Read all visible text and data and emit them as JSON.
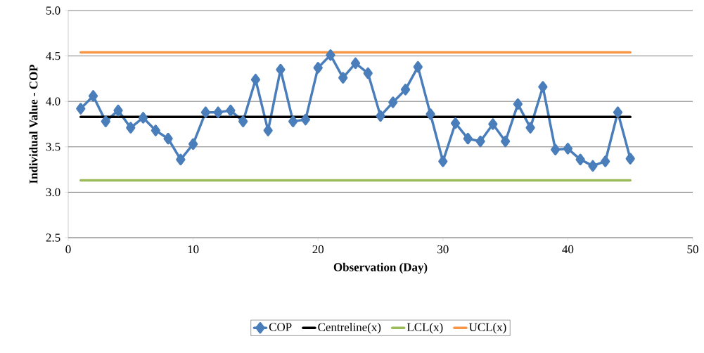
{
  "chart_data": {
    "type": "line",
    "xlabel": "Observation (Day)",
    "ylabel": "Individual Value - COP",
    "xlim": [
      0,
      50
    ],
    "xticks": [
      0,
      10,
      20,
      30,
      40,
      50
    ],
    "ylim": [
      2.5,
      5.0
    ],
    "yticks": [
      {
        "value": 2.5,
        "label": "2.5"
      },
      {
        "value": 3.0,
        "label": "3.0"
      },
      {
        "value": 3.5,
        "label": "3.5"
      },
      {
        "value": 4.0,
        "label": "4.0"
      },
      {
        "value": 4.5,
        "label": "4.5"
      },
      {
        "value": 5.0,
        "label": "5.0"
      }
    ],
    "grid": "y",
    "legend": "bottom",
    "marker": "diamond",
    "line_style": "solid",
    "series": [
      {
        "name": "COP",
        "color": "#4a7ebb",
        "x": [
          1,
          2,
          3,
          4,
          5,
          6,
          7,
          8,
          9,
          10,
          11,
          12,
          13,
          14,
          15,
          16,
          17,
          18,
          19,
          20,
          21,
          22,
          23,
          24,
          25,
          26,
          27,
          28,
          29,
          30,
          31,
          32,
          33,
          34,
          35,
          36,
          37,
          38,
          39,
          40,
          41,
          42,
          43,
          44,
          45
        ],
        "values": [
          3.92,
          4.06,
          3.78,
          3.9,
          3.71,
          3.82,
          3.68,
          3.59,
          3.36,
          3.53,
          3.88,
          3.88,
          3.9,
          3.78,
          4.24,
          3.68,
          4.35,
          3.78,
          3.8,
          4.37,
          4.51,
          4.26,
          4.42,
          4.31,
          3.84,
          3.99,
          4.13,
          4.38,
          3.86,
          3.34,
          3.76,
          3.59,
          3.56,
          3.75,
          3.56,
          3.97,
          3.71,
          4.16,
          3.47,
          3.48,
          3.36,
          3.29,
          3.34,
          3.88,
          3.37
        ]
      },
      {
        "name": "Centreline(x)",
        "color": "#000000",
        "marker": "none",
        "x": [
          1,
          45
        ],
        "values": [
          3.83,
          3.83
        ]
      },
      {
        "name": "LCL(x)",
        "color": "#9bbb59",
        "marker": "none",
        "x": [
          1,
          45
        ],
        "values": [
          3.13,
          3.13
        ]
      },
      {
        "name": "UCL(x)",
        "color": "#f79646",
        "marker": "none",
        "x": [
          1,
          45
        ],
        "values": [
          4.54,
          4.54
        ]
      }
    ]
  }
}
